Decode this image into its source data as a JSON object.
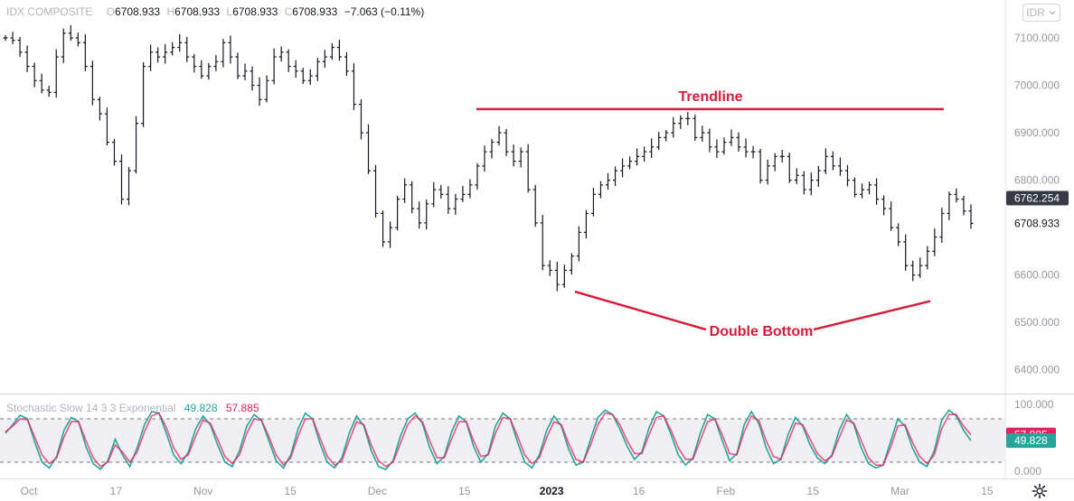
{
  "header": {
    "symbol": "IDX COMPOSITE",
    "open_key": "O",
    "open": "6708.933",
    "high_key": "H",
    "high": "6708.933",
    "low_key": "L",
    "low": "6708.933",
    "close_key": "C",
    "close": "6708.933",
    "change": "−7.063 (−0.11%)"
  },
  "currency_button": {
    "label": "IDR",
    "icon": "chevron-down-icon"
  },
  "settings_icon": "gear-icon",
  "chart_data": {
    "type": "line",
    "subtype": "ohlc-bars",
    "price_axis": {
      "ylim": [
        6350,
        7180
      ],
      "tick_values": [
        7100,
        7000,
        6900,
        6800,
        6700,
        6600,
        6500,
        6400
      ],
      "tick_labels": [
        "7100.000",
        "7000.000",
        "6900.000",
        "6800.000",
        "6600.000",
        "6500.000",
        "6400.000"
      ],
      "tick_label_values": [
        7100,
        7000,
        6900,
        6800,
        6600,
        6500,
        6400
      ],
      "badges": [
        {
          "label": "6762.254",
          "value": 6762.254,
          "background": "#363a45",
          "color": "#ffffff"
        },
        {
          "label": "6708.933",
          "value": 6708.933,
          "background": "#ffffff",
          "color": "#131722"
        }
      ]
    },
    "time_axis": {
      "tick_labels": [
        "Oct",
        "17",
        "Nov",
        "15",
        "Dec",
        "15",
        "2023",
        "16",
        "Feb",
        "15",
        "Mar",
        "15"
      ],
      "tick_indices": [
        0,
        12,
        24,
        36,
        48,
        60,
        72,
        84,
        96,
        108,
        120,
        132
      ]
    },
    "series": [
      {
        "name": "",
        "color": "#131722",
        "values": [
          7100,
          7095,
          7070,
          7040,
          7010,
          6990,
          6985,
          7060,
          7110,
          7100,
          7090,
          7040,
          6970,
          6940,
          6880,
          6840,
          6760,
          6820,
          6920,
          7040,
          7070,
          7060,
          7070,
          7080,
          7090,
          7060,
          7040,
          7020,
          7040,
          7050,
          7090,
          7060,
          7020,
          7030,
          7000,
          6970,
          7010,
          7060,
          7070,
          7040,
          7030,
          7010,
          7020,
          7050,
          7060,
          7080,
          7060,
          7030,
          6960,
          6900,
          6820,
          6730,
          6670,
          6700,
          6760,
          6790,
          6740,
          6710,
          6750,
          6780,
          6770,
          6740,
          6760,
          6770,
          6790,
          6830,
          6860,
          6880,
          6900,
          6860,
          6840,
          6860,
          6780,
          6710,
          6620,
          6610,
          6580,
          6610,
          6640,
          6690,
          6730,
          6770,
          6790,
          6800,
          6820,
          6830,
          6840,
          6850,
          6860,
          6870,
          6890,
          6900,
          6920,
          6930,
          6930,
          6890,
          6900,
          6870,
          6860,
          6880,
          6890,
          6870,
          6860,
          6860,
          6800,
          6830,
          6850,
          6850,
          6800,
          6810,
          6780,
          6800,
          6820,
          6850,
          6830,
          6820,
          6800,
          6770,
          6780,
          6790,
          6760,
          6740,
          6700,
          6670,
          6620,
          6600,
          6620,
          6650,
          6680,
          6730,
          6770,
          6760,
          6735,
          6708.933
        ],
        "annotations_note": "approximate daily closes read from bars"
      }
    ],
    "annotations": [
      {
        "type": "horizontal-trendline",
        "label": "Trendline",
        "value": 6950,
        "color": "#d81b3c"
      },
      {
        "type": "double-bottom-lines",
        "label": "Double Bottom",
        "color": "#d81b3c",
        "points": [
          {
            "index": 79,
            "value": 6565
          },
          {
            "index": 112,
            "value": 6545
          }
        ],
        "apex_value": 6485
      }
    ],
    "stochastic": {
      "name": "Stochastic Slow 14 3 3 Exponential",
      "k_label": "49.828",
      "d_label": "57.885",
      "k_value": 49.828,
      "d_value": 57.885,
      "k_color": "#26a69a",
      "d_color": "#e91e63",
      "ylim": [
        0,
        100
      ],
      "upper_band": 80,
      "lower_band": 20,
      "tick_labels": [
        "100.000",
        "0.000"
      ],
      "k_values": [
        60,
        72,
        85,
        80,
        48,
        20,
        12,
        28,
        64,
        82,
        76,
        42,
        18,
        10,
        22,
        52,
        30,
        14,
        40,
        72,
        90,
        88,
        60,
        30,
        18,
        34,
        66,
        84,
        72,
        44,
        20,
        14,
        36,
        70,
        86,
        78,
        50,
        22,
        12,
        30,
        66,
        88,
        80,
        46,
        20,
        12,
        26,
        60,
        84,
        70,
        36,
        14,
        10,
        22,
        56,
        80,
        88,
        74,
        40,
        18,
        28,
        62,
        84,
        76,
        42,
        20,
        32,
        70,
        88,
        80,
        48,
        20,
        12,
        30,
        64,
        84,
        70,
        38,
        16,
        20,
        52,
        82,
        92,
        86,
        66,
        42,
        24,
        34,
        68,
        90,
        84,
        58,
        30,
        16,
        26,
        60,
        86,
        80,
        50,
        22,
        32,
        72,
        90,
        74,
        40,
        18,
        24,
        58,
        82,
        70,
        44,
        26,
        18,
        30,
        64,
        86,
        72,
        40,
        18,
        12,
        16,
        48,
        80,
        70,
        40,
        20,
        14,
        36,
        78,
        92,
        84,
        64,
        49.828
      ],
      "d_values": [
        62,
        70,
        80,
        79,
        55,
        30,
        18,
        26,
        55,
        76,
        76,
        50,
        26,
        14,
        20,
        44,
        34,
        20,
        34,
        62,
        84,
        88,
        68,
        40,
        24,
        30,
        56,
        78,
        74,
        52,
        28,
        18,
        30,
        60,
        80,
        78,
        56,
        30,
        16,
        26,
        56,
        80,
        80,
        54,
        28,
        16,
        22,
        50,
        76,
        72,
        44,
        22,
        14,
        20,
        46,
        72,
        84,
        76,
        50,
        26,
        26,
        52,
        76,
        76,
        50,
        28,
        30,
        60,
        82,
        80,
        56,
        30,
        18,
        26,
        54,
        76,
        72,
        46,
        24,
        20,
        44,
        72,
        88,
        86,
        72,
        50,
        32,
        32,
        58,
        82,
        84,
        64,
        40,
        24,
        24,
        50,
        76,
        80,
        58,
        32,
        30,
        62,
        84,
        78,
        50,
        28,
        24,
        48,
        74,
        72,
        52,
        32,
        22,
        28,
        54,
        78,
        74,
        50,
        26,
        16,
        16,
        40,
        70,
        72,
        48,
        28,
        18,
        30,
        66,
        86,
        86,
        70,
        57.885
      ]
    }
  }
}
